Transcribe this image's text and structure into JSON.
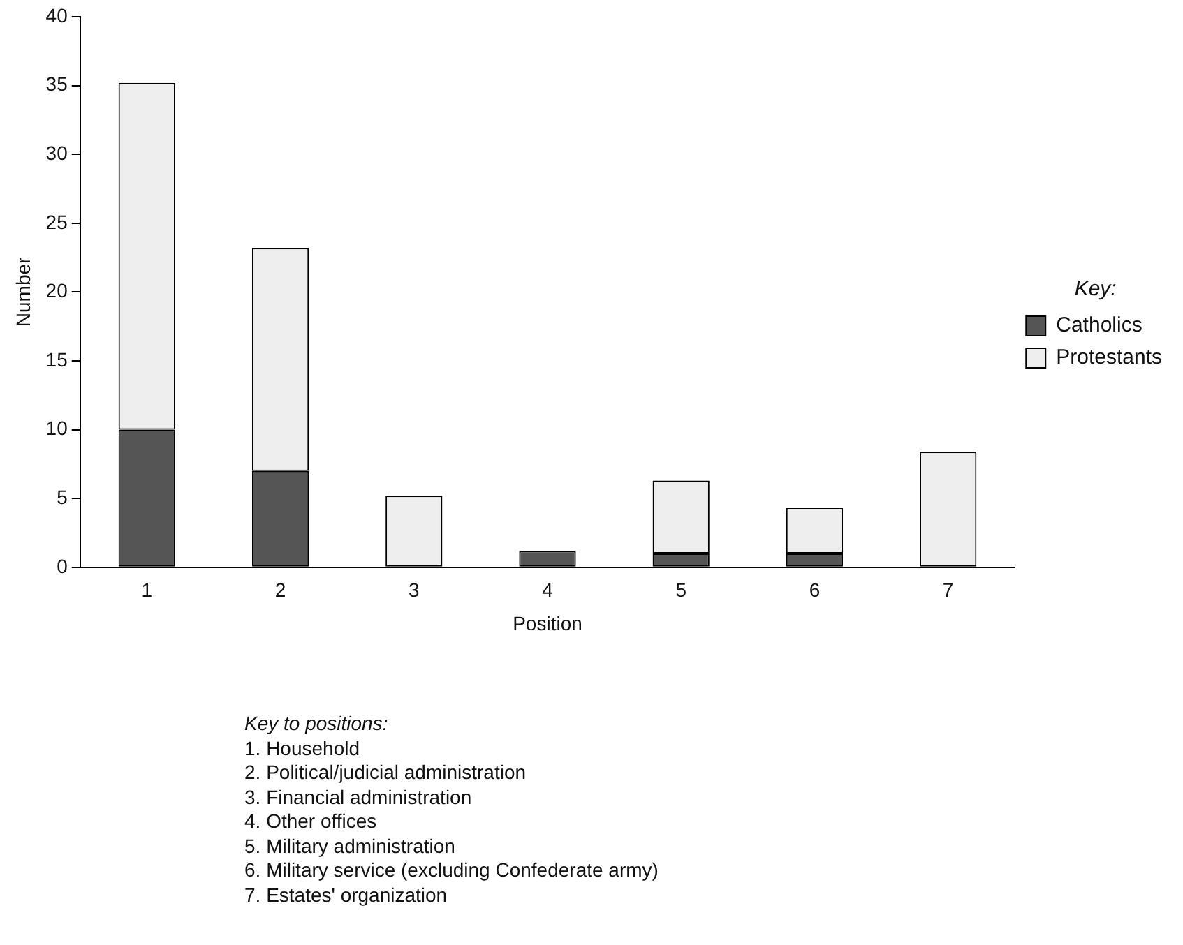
{
  "chart_data": {
    "type": "bar",
    "stacked": true,
    "xlabel": "Position",
    "ylabel": "Number",
    "legend_title": "Key:",
    "legend": "right",
    "categories": [
      "1",
      "2",
      "3",
      "4",
      "5",
      "6",
      "7"
    ],
    "series": [
      {
        "name": "Catholics",
        "color": "#555555",
        "values": [
          10,
          7,
          0,
          1.2,
          1,
          1,
          0
        ]
      },
      {
        "name": "Protestants",
        "color": "#eeeeee",
        "values": [
          25.2,
          16.2,
          5.2,
          0,
          5.3,
          3.3,
          8.4
        ]
      }
    ],
    "ylim": [
      0,
      40
    ],
    "yticks": [
      0,
      5,
      10,
      15,
      20,
      25,
      30,
      35,
      40
    ],
    "grid": false,
    "annotations": [
      "Key to positions:",
      "1. Household",
      "2. Political/judicial administration",
      "3. Financial administration",
      "4. Other offices",
      "5. Military administration",
      "6. Military service (excluding Confederate army)",
      "7. Estates' organization"
    ]
  }
}
